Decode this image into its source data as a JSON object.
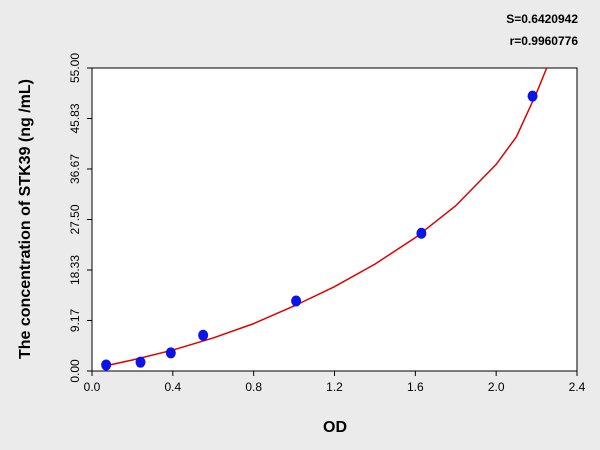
{
  "chart_data": {
    "type": "scatter",
    "x_label": "OD",
    "y_label": "The concentration of STK39 (ng /mL)",
    "annotations": [
      "S=0.6420942",
      "r=0.9960776"
    ],
    "points": {
      "color": "#0a14e6",
      "x": [
        0.07,
        0.24,
        0.39,
        0.55,
        1.01,
        1.63,
        2.18
      ],
      "values": [
        1.1,
        1.6,
        3.3,
        6.5,
        12.7,
        25.0,
        49.9
      ]
    },
    "fit": {
      "color": "#e00000",
      "x": [
        0.05,
        0.2,
        0.4,
        0.6,
        0.8,
        1.0,
        1.2,
        1.4,
        1.6,
        1.8,
        2.0,
        2.1,
        2.2,
        2.25
      ],
      "values": [
        0.8,
        2.0,
        3.8,
        6.0,
        8.6,
        11.8,
        15.3,
        19.4,
        24.2,
        30.0,
        37.5,
        42.5,
        50.5,
        55.0
      ]
    },
    "xlim": [
      0,
      2.4
    ],
    "ylim": [
      0,
      55
    ],
    "xticks": [
      {
        "value": 0,
        "label": "0.0"
      },
      0.4,
      0.8,
      1.2,
      1.6,
      {
        "value": 2,
        "label": "2.0"
      },
      2.4
    ],
    "yticks": [
      {
        "value": 0,
        "label": "0.00"
      },
      {
        "value": 9.17,
        "label": "9.17"
      },
      {
        "value": 18.33,
        "label": "18.33"
      },
      {
        "value": 27.5,
        "label": "27.50"
      },
      {
        "value": 36.67,
        "label": "36.67"
      },
      {
        "value": 45.83,
        "label": "45.83"
      },
      {
        "value": 55,
        "label": "55.00"
      }
    ]
  }
}
